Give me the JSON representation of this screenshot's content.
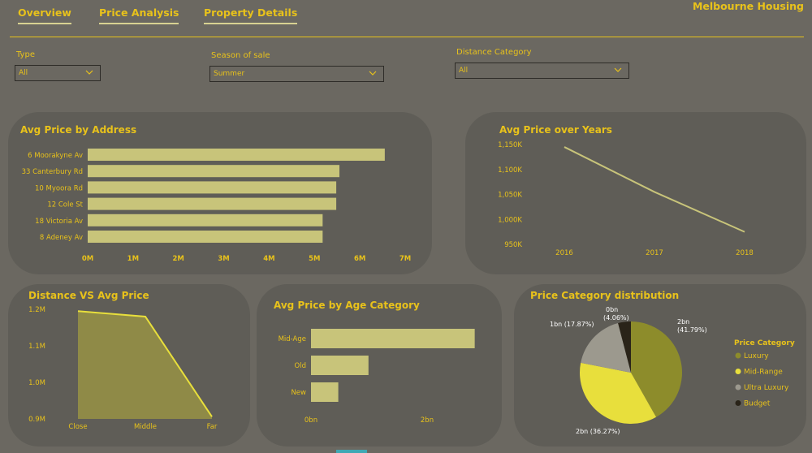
{
  "nav": {
    "tabs": [
      {
        "label": "Overview"
      },
      {
        "label": "Price Analysis"
      },
      {
        "label": "Property Details"
      }
    ],
    "brand": "Melbourne Housing"
  },
  "filters": [
    {
      "label": "Type",
      "value": "All"
    },
    {
      "label": "Season of sale",
      "value": "Summer"
    },
    {
      "label": "Distance Category",
      "value": "All"
    }
  ],
  "colors": {
    "background": "#6b6861",
    "panel": "#5f5d57",
    "accent": "#e8c21b",
    "bar": "#c8c47a",
    "pie_luxury": "#8d8c2b",
    "pie_midrange": "#e8df3c",
    "pie_ultra": "#9c998e",
    "pie_budget": "#2a2419"
  },
  "icons": {
    "dropdown": "chevron-down-icon"
  },
  "chart_data": [
    {
      "type": "bar",
      "orientation": "horizontal",
      "title": "Avg Price by Address",
      "categories": [
        "6 Moorakyne Av",
        "33 Canterbury Rd",
        "10 Myoora Rd",
        "12 Cole St",
        "18 Victoria Av",
        "8 Adeney Av"
      ],
      "values": [
        6550000,
        5550000,
        5480000,
        5480000,
        5180000,
        5180000
      ],
      "xticks": [
        "0M",
        "1M",
        "2M",
        "3M",
        "4M",
        "5M",
        "6M",
        "7M"
      ],
      "xlim": [
        0,
        7000000
      ]
    },
    {
      "type": "line",
      "title": "Avg Price over Years",
      "x": [
        "2016",
        "2017",
        "2018"
      ],
      "values": [
        1145000,
        1055000,
        975000
      ],
      "yticks": [
        "950K",
        "1,000K",
        "1,050K",
        "1,100K",
        "1,150K"
      ],
      "ylim": [
        950000,
        1150000
      ]
    },
    {
      "type": "area",
      "title": "Distance VS Avg Price",
      "x": [
        "Close",
        "Middle",
        "Far"
      ],
      "values": [
        1195000,
        1180000,
        906000
      ],
      "yticks": [
        "0.9M",
        "1.0M",
        "1.1M",
        "1.2M"
      ],
      "ylim": [
        900000,
        1200000
      ]
    },
    {
      "type": "bar",
      "orientation": "horizontal",
      "title": "Avg Price by Age Category",
      "categories": [
        "Mid-Age",
        "Old",
        "New"
      ],
      "values": [
        2820000,
        990000,
        470000
      ],
      "xticks": [
        "0bn",
        "2bn"
      ],
      "xlim": [
        0,
        2000000000
      ]
    },
    {
      "type": "pie",
      "title": "Price Category distribution",
      "legend_title": "Price Category",
      "legend_position": "right",
      "slices": [
        {
          "name": "Luxury",
          "value": 41.79,
          "label": "2bn (41.79%)",
          "color": "#8d8c2b"
        },
        {
          "name": "Mid-Range",
          "value": 36.27,
          "label": "2bn (36.27%)",
          "color": "#e8df3c"
        },
        {
          "name": "Ultra Luxury",
          "value": 17.87,
          "label": "1bn (17.87%)",
          "color": "#9c998e"
        },
        {
          "name": "Budget",
          "value": 4.06,
          "label": "0bn (4.06%)",
          "color": "#2a2419"
        }
      ]
    }
  ]
}
